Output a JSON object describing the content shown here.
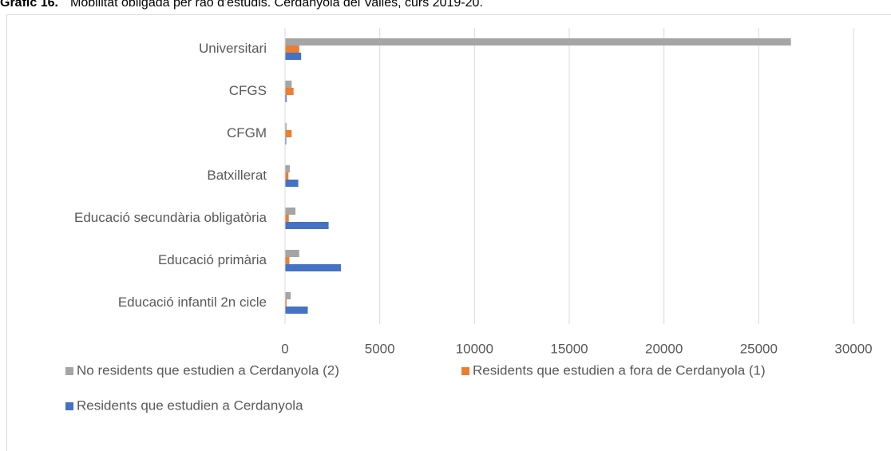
{
  "chart_data": {
    "type": "barh",
    "figure_label": "Gràfic 16.",
    "title": "Mobilitat obligada per raó d'estudis. Cerdanyola del Vallès, curs 2019-20.",
    "categories": [
      "Universitari",
      "CFGS",
      "CFGM",
      "Batxillerat",
      "Educació secundària obligatòria",
      "Educació primària",
      "Educació infantil 2n cicle"
    ],
    "series": [
      {
        "name": "No residents que estudien a Cerdanyola (2)",
        "color": "#a5a5a5",
        "values": [
          26700,
          350,
          80,
          250,
          550,
          750,
          300
        ]
      },
      {
        "name": "Residents que estudien a fora de Cerdanyola (1)",
        "color": "#ed7d31",
        "values": [
          750,
          450,
          350,
          180,
          200,
          230,
          80
        ]
      },
      {
        "name": "Residents que estudien a Cerdanyola",
        "color": "#4472c4",
        "values": [
          850,
          80,
          60,
          700,
          2300,
          2950,
          1200
        ]
      }
    ],
    "xlim": [
      0,
      30000
    ],
    "xticks": [
      0,
      5000,
      10000,
      15000,
      20000,
      25000,
      30000
    ],
    "grid": true
  }
}
